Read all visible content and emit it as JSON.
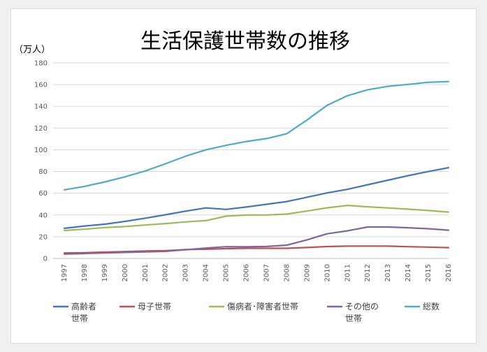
{
  "chart_data": {
    "type": "line",
    "title": "生活保護世帯数の推移",
    "unit_label": "（万人）",
    "x": [
      "1997",
      "1998",
      "1999",
      "2000",
      "2001",
      "2002",
      "2003",
      "2004",
      "2005",
      "2006",
      "2007",
      "2008",
      "2009",
      "2010",
      "2011",
      "2012",
      "2013",
      "2014",
      "2015",
      "2016"
    ],
    "ylim": [
      0,
      180
    ],
    "yticks": [
      0,
      20,
      40,
      60,
      80,
      100,
      120,
      140,
      160,
      180
    ],
    "grid": "horizontal",
    "legend_position": "bottom",
    "series": [
      {
        "name": "高齢者世帯",
        "legend_lines": [
          "高齢者",
          "世帯"
        ],
        "color": "#4472C4",
        "values": [
          27.7,
          29.8,
          31.5,
          34.1,
          37.0,
          40.2,
          43.5,
          46.5,
          45.1,
          47.3,
          49.8,
          52.3,
          56.3,
          60.3,
          63.6,
          67.8,
          72.0,
          76.2,
          80.0,
          83.5
        ]
      },
      {
        "name": "母子世帯",
        "legend_lines": [
          "母子世帯"
        ],
        "color": "#C0504D",
        "values": [
          5.0,
          5.3,
          5.8,
          6.3,
          6.8,
          7.2,
          8.1,
          8.5,
          9.0,
          9.3,
          9.3,
          9.3,
          10.0,
          10.9,
          11.3,
          11.4,
          11.3,
          10.8,
          10.4,
          9.9
        ]
      },
      {
        "name": "傷病者・障害者世帯",
        "legend_lines": [
          "傷病者･障害者世帯"
        ],
        "color": "#9BBB59",
        "values": [
          25.7,
          26.9,
          28.4,
          29.3,
          30.7,
          32.1,
          33.6,
          34.8,
          38.9,
          39.9,
          40.0,
          40.8,
          43.6,
          46.6,
          48.8,
          47.5,
          46.5,
          45.3,
          44.1,
          42.6
        ]
      },
      {
        "name": "その他の世帯",
        "legend_lines": [
          "その他の",
          "世帯"
        ],
        "color": "#8064A2",
        "values": [
          4.0,
          4.5,
          5.0,
          5.5,
          6.0,
          6.5,
          8.0,
          9.5,
          10.8,
          10.7,
          11.0,
          12.2,
          17.1,
          22.7,
          25.4,
          28.9,
          28.9,
          28.2,
          27.3,
          26.0
        ]
      },
      {
        "name": "総数",
        "legend_lines": [
          "総数"
        ],
        "color": "#4BACC6",
        "values": [
          63.1,
          66.3,
          70.4,
          75.1,
          80.5,
          87.1,
          94.1,
          99.9,
          104.1,
          107.6,
          110.3,
          114.8,
          127.4,
          141.0,
          149.8,
          155.2,
          158.4,
          160.2,
          162.1,
          162.8
        ]
      }
    ]
  }
}
